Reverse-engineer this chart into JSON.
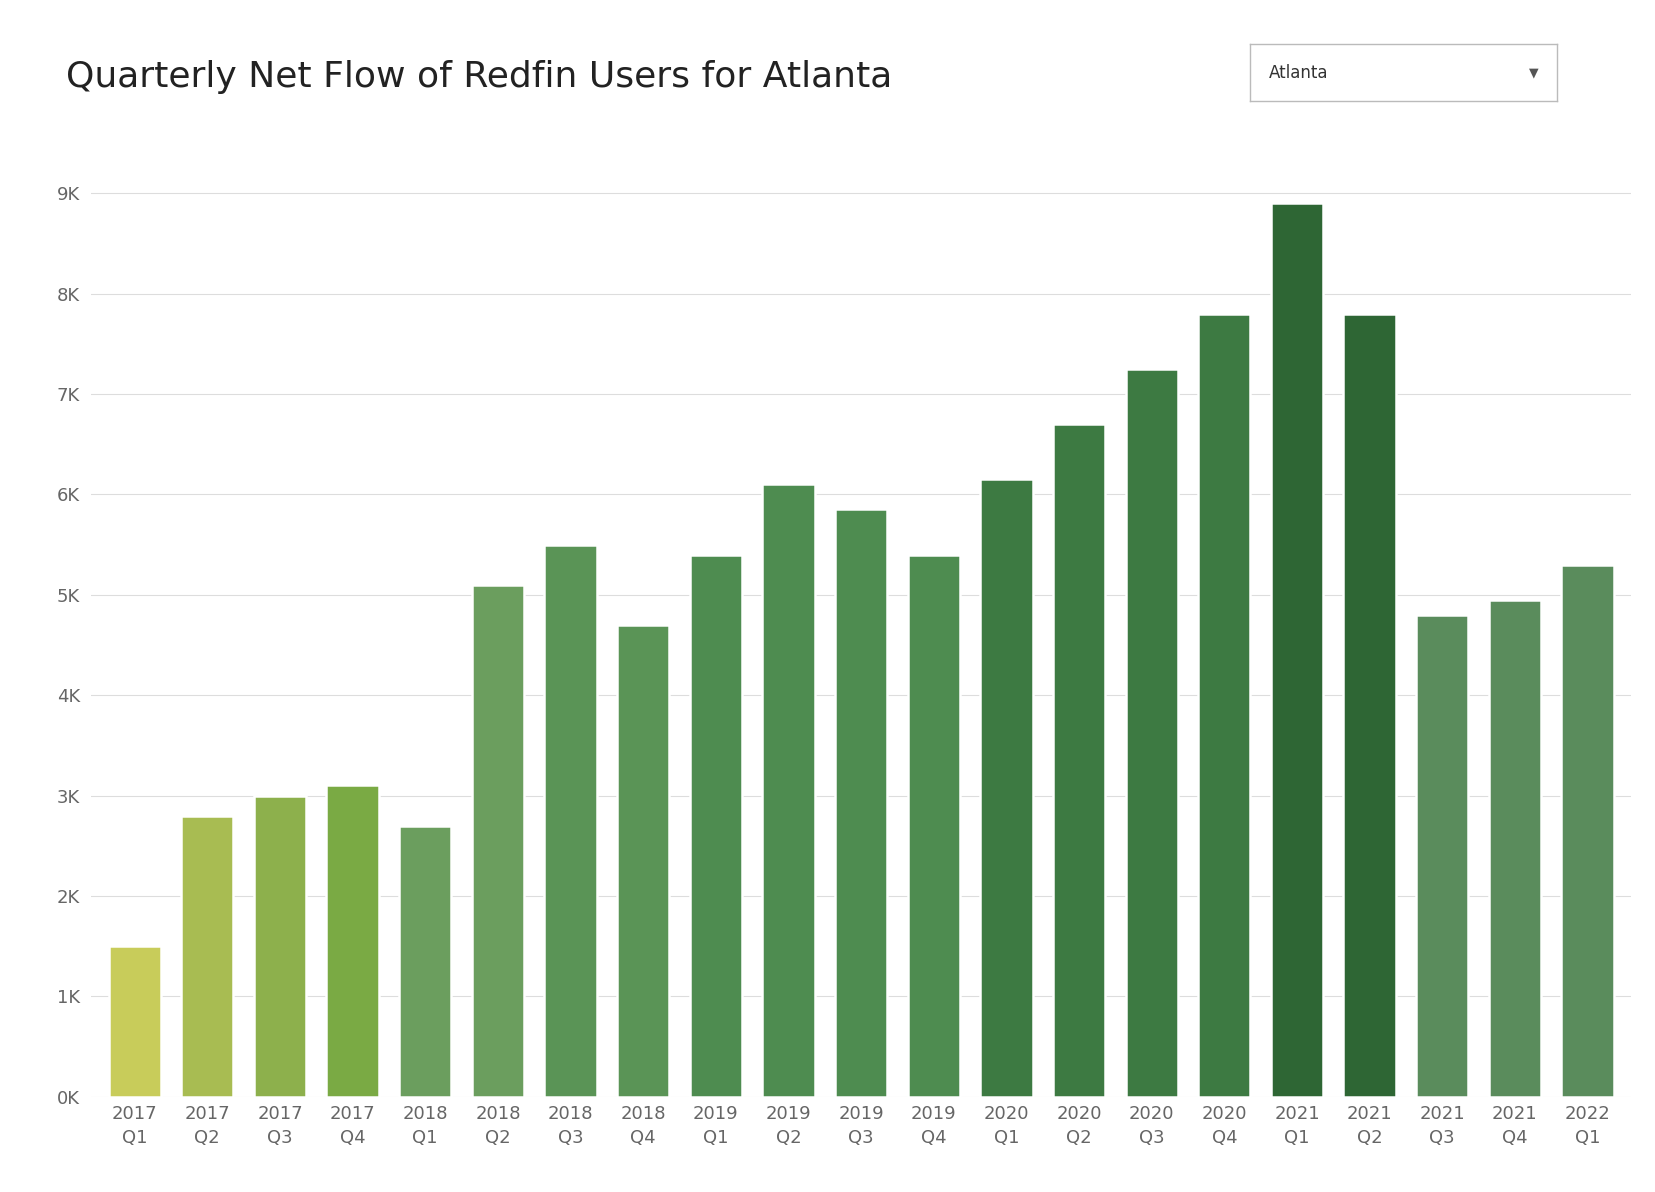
{
  "title": "Quarterly Net Flow of Redfin Users for Atlanta",
  "dropdown_label": "Atlanta",
  "categories": [
    "2017\nQ1",
    "2017\nQ2",
    "2017\nQ3",
    "2017\nQ4",
    "2018\nQ1",
    "2018\nQ2",
    "2018\nQ3",
    "2018\nQ4",
    "2019\nQ1",
    "2019\nQ2",
    "2019\nQ3",
    "2019\nQ4",
    "2020\nQ1",
    "2020\nQ2",
    "2020\nQ3",
    "2020\nQ4",
    "2021\nQ1",
    "2021\nQ2",
    "2021\nQ3",
    "2021\nQ4",
    "2022\nQ1"
  ],
  "values": [
    1500,
    2800,
    3000,
    3100,
    2700,
    5100,
    5500,
    4700,
    5400,
    6100,
    5850,
    5400,
    6150,
    6700,
    7250,
    7800,
    8900,
    7800,
    4800,
    4950,
    5300
  ],
  "bar_colors": [
    "#c8cc5a",
    "#a8bc52",
    "#8db04c",
    "#7aaa44",
    "#6b9e5e",
    "#6b9e5e",
    "#5a9456",
    "#5a9456",
    "#4e8c50",
    "#4e8c50",
    "#4e8c50",
    "#4e8c50",
    "#3d7a42",
    "#3d7a42",
    "#3d7a42",
    "#3d7a42",
    "#2e6634",
    "#2e6634",
    "#5a8c5c",
    "#5a8c5c",
    "#5a8c5c"
  ],
  "ytick_labels": [
    "0K",
    "1K",
    "2K",
    "3K",
    "4K",
    "5K",
    "6K",
    "7K",
    "8K",
    "9K"
  ],
  "ytick_values": [
    0,
    1000,
    2000,
    3000,
    4000,
    5000,
    6000,
    7000,
    8000,
    9000
  ],
  "ylim": [
    0,
    9500
  ],
  "background_color": "#ffffff",
  "grid_color": "#dddddd",
  "title_fontsize": 26,
  "tick_fontsize": 13,
  "bar_width": 0.72
}
